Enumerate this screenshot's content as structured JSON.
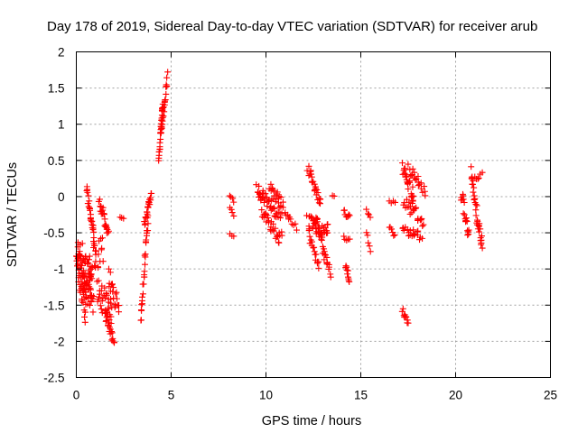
{
  "chart_data": {
    "type": "scatter",
    "title": "Day 178 of 2019, Sidereal Day-to-day VTEC variation (SDTVAR) for receiver arub",
    "xlabel": "GPS time / hours",
    "ylabel": "SDTVAR / TECUs",
    "xlim": [
      0,
      25
    ],
    "ylim": [
      -2.5,
      2
    ],
    "xticks": [
      0,
      5,
      10,
      15,
      20,
      25
    ],
    "xtick_labels": [
      "0",
      "5",
      "10",
      "15",
      "20",
      "25"
    ],
    "yticks": [
      -2.5,
      -2,
      -1.5,
      -1,
      -0.5,
      0,
      0.5,
      1,
      1.5,
      2
    ],
    "ytick_labels": [
      "-2.5",
      "-2",
      "-1.5",
      "-1",
      "-0.5",
      "0",
      "0.5",
      "1",
      "1.5",
      "2"
    ],
    "grid": true,
    "marker": "plus",
    "color": "#ff0000",
    "segments": [
      {
        "x0": 0.05,
        "x1": 0.5,
        "y0": -0.85,
        "y1": -1.5,
        "n": 40,
        "jitter": 0.3
      },
      {
        "x0": 0.0,
        "x1": 0.8,
        "y0": -0.75,
        "y1": -1.1,
        "n": 40,
        "jitter": 0.25
      },
      {
        "x0": 0.3,
        "x1": 0.9,
        "y0": -1.2,
        "y1": -1.5,
        "n": 30,
        "jitter": 0.15
      },
      {
        "x0": 0.55,
        "x1": 1.0,
        "y0": 0.1,
        "y1": -0.7,
        "n": 30,
        "jitter": 0.1
      },
      {
        "x0": 0.6,
        "x1": 1.4,
        "y0": -1.0,
        "y1": -0.7,
        "n": 25,
        "jitter": 0.2
      },
      {
        "x0": 1.2,
        "x1": 1.7,
        "y0": -0.05,
        "y1": -0.5,
        "n": 25,
        "jitter": 0.08
      },
      {
        "x0": 1.1,
        "x1": 1.9,
        "y0": -1.3,
        "y1": -1.6,
        "n": 35,
        "jitter": 0.2
      },
      {
        "x0": 1.5,
        "x1": 2.0,
        "y0": -1.6,
        "y1": -2.05,
        "n": 20,
        "jitter": 0.06
      },
      {
        "x0": 1.7,
        "x1": 2.25,
        "y0": -1.1,
        "y1": -1.55,
        "n": 20,
        "jitter": 0.15
      },
      {
        "x0": 2.3,
        "x1": 2.5,
        "y0": -0.3,
        "y1": -0.32,
        "n": 3,
        "jitter": 0.02
      },
      {
        "x0": 3.4,
        "x1": 3.8,
        "y0": -1.75,
        "y1": -0.2,
        "n": 30,
        "jitter": 0.1
      },
      {
        "x0": 3.6,
        "x1": 3.95,
        "y0": -0.4,
        "y1": 0.05,
        "n": 20,
        "jitter": 0.06
      },
      {
        "x0": 4.35,
        "x1": 4.55,
        "y0": 0.55,
        "y1": 1.25,
        "n": 25,
        "jitter": 0.07
      },
      {
        "x0": 4.45,
        "x1": 4.8,
        "y0": 0.85,
        "y1": 1.65,
        "n": 25,
        "jitter": 0.08
      },
      {
        "x0": 8.1,
        "x1": 8.3,
        "y0": 0.02,
        "y1": -0.05,
        "n": 4,
        "jitter": 0.03
      },
      {
        "x0": 8.1,
        "x1": 8.3,
        "y0": -0.18,
        "y1": -0.25,
        "n": 4,
        "jitter": 0.03
      },
      {
        "x0": 8.1,
        "x1": 8.3,
        "y0": -0.5,
        "y1": -0.55,
        "n": 3,
        "jitter": 0.02
      },
      {
        "x0": 9.5,
        "x1": 10.8,
        "y0": 0.1,
        "y1": -0.25,
        "n": 45,
        "jitter": 0.12
      },
      {
        "x0": 9.8,
        "x1": 10.8,
        "y0": -0.25,
        "y1": -0.6,
        "n": 30,
        "jitter": 0.1
      },
      {
        "x0": 10.2,
        "x1": 10.9,
        "y0": 0.15,
        "y1": -0.15,
        "n": 20,
        "jitter": 0.08
      },
      {
        "x0": 11.0,
        "x1": 11.6,
        "y0": -0.2,
        "y1": -0.45,
        "n": 10,
        "jitter": 0.05
      },
      {
        "x0": 12.2,
        "x1": 12.9,
        "y0": 0.4,
        "y1": -0.1,
        "n": 25,
        "jitter": 0.07
      },
      {
        "x0": 12.6,
        "x1": 13.4,
        "y0": -0.3,
        "y1": -1.1,
        "n": 30,
        "jitter": 0.08
      },
      {
        "x0": 12.2,
        "x1": 13.3,
        "y0": -0.35,
        "y1": -0.5,
        "n": 40,
        "jitter": 0.12
      },
      {
        "x0": 12.3,
        "x1": 12.8,
        "y0": -0.6,
        "y1": -0.95,
        "n": 15,
        "jitter": 0.06
      },
      {
        "x0": 13.5,
        "x1": 13.6,
        "y0": 0.0,
        "y1": 0.0,
        "n": 2,
        "jitter": 0.02
      },
      {
        "x0": 14.1,
        "x1": 14.4,
        "y0": -0.2,
        "y1": -0.3,
        "n": 8,
        "jitter": 0.04
      },
      {
        "x0": 14.1,
        "x1": 14.4,
        "y0": -0.55,
        "y1": -0.6,
        "n": 5,
        "jitter": 0.03
      },
      {
        "x0": 14.2,
        "x1": 14.4,
        "y0": -0.95,
        "y1": -1.15,
        "n": 10,
        "jitter": 0.04
      },
      {
        "x0": 15.3,
        "x1": 15.5,
        "y0": -0.2,
        "y1": -0.3,
        "n": 4,
        "jitter": 0.03
      },
      {
        "x0": 15.3,
        "x1": 15.5,
        "y0": -0.5,
        "y1": -0.75,
        "n": 5,
        "jitter": 0.03
      },
      {
        "x0": 16.5,
        "x1": 16.8,
        "y0": -0.05,
        "y1": -0.1,
        "n": 4,
        "jitter": 0.03
      },
      {
        "x0": 16.5,
        "x1": 16.8,
        "y0": -0.4,
        "y1": -0.55,
        "n": 6,
        "jitter": 0.03
      },
      {
        "x0": 17.2,
        "x1": 17.8,
        "y0": 0.4,
        "y1": 0.0,
        "n": 25,
        "jitter": 0.1
      },
      {
        "x0": 17.3,
        "x1": 18.3,
        "y0": -0.05,
        "y1": -0.35,
        "n": 25,
        "jitter": 0.1
      },
      {
        "x0": 17.5,
        "x1": 18.4,
        "y0": 0.4,
        "y1": 0.05,
        "n": 20,
        "jitter": 0.08
      },
      {
        "x0": 17.2,
        "x1": 18.2,
        "y0": -0.45,
        "y1": -0.55,
        "n": 20,
        "jitter": 0.06
      },
      {
        "x0": 17.2,
        "x1": 17.5,
        "y0": -1.55,
        "y1": -1.75,
        "n": 10,
        "jitter": 0.05
      },
      {
        "x0": 20.3,
        "x1": 20.7,
        "y0": 0.05,
        "y1": -0.55,
        "n": 20,
        "jitter": 0.1
      },
      {
        "x0": 20.8,
        "x1": 21.4,
        "y0": 0.3,
        "y1": -0.7,
        "n": 35,
        "jitter": 0.12
      },
      {
        "x0": 21.0,
        "x1": 21.4,
        "y0": 0.25,
        "y1": 0.3,
        "n": 6,
        "jitter": 0.04
      }
    ]
  }
}
